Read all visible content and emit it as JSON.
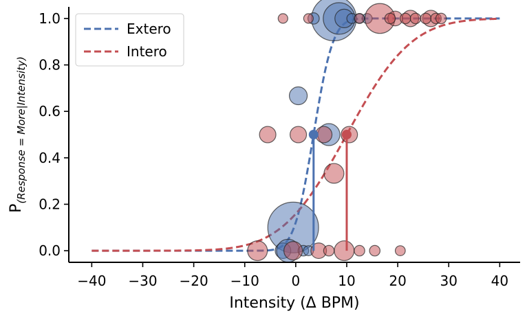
{
  "chart_data": {
    "type": "scatter",
    "xlabel": "Intensity (Δ BPM)",
    "ylabel_main": "P",
    "ylabel_sub": "(Response = More|Intensity)",
    "xlim": [
      -44.5,
      44
    ],
    "ylim": [
      -0.05,
      1.05
    ],
    "xticks": [
      -40,
      -30,
      -20,
      -10,
      0,
      10,
      20,
      30,
      40
    ],
    "yticks": [
      0.0,
      0.2,
      0.4,
      0.6,
      0.8,
      1.0
    ],
    "xtick_labels": [
      "−40",
      "−30",
      "−20",
      "−10",
      "0",
      "10",
      "20",
      "30",
      "40"
    ],
    "ytick_labels": [
      "0.0",
      "0.2",
      "0.4",
      "0.6",
      "0.8",
      "1.0"
    ],
    "legend_position": "upper-left",
    "series": [
      {
        "name": "Extero",
        "color": "#4c72b0",
        "curve": {
          "threshold": 3.5,
          "slope": 3.0,
          "x_range": [
            -40,
            40
          ]
        },
        "threshold_marker": {
          "x": 3.5,
          "y": 0.5
        },
        "points": [
          {
            "x": 7.5,
            "y": 1.0,
            "n": 9
          },
          {
            "x": 8.5,
            "y": 1.0,
            "n": 4
          },
          {
            "x": 9.5,
            "y": 1.0,
            "n": 1
          },
          {
            "x": 3.5,
            "y": 1.0,
            "n": 0.2
          },
          {
            "x": 11,
            "y": 1.0,
            "n": 0.12
          },
          {
            "x": 12.5,
            "y": 1.0,
            "n": 0.12
          },
          {
            "x": 14,
            "y": 1.0,
            "n": 0.12
          },
          {
            "x": 0.5,
            "y": 0.667,
            "n": 0.9
          },
          {
            "x": 6.5,
            "y": 0.5,
            "n": 1.6
          },
          {
            "x": -0.5,
            "y": 0.1,
            "n": 12
          },
          {
            "x": -2.5,
            "y": 0.0,
            "n": 0.6
          },
          {
            "x": -1.5,
            "y": 0.0,
            "n": 1.8
          },
          {
            "x": 1.5,
            "y": 0.0,
            "n": 0.15
          },
          {
            "x": 2.5,
            "y": 0.0,
            "n": 0.12
          }
        ]
      },
      {
        "name": "Intero",
        "color": "#c44e52",
        "curve": {
          "threshold": 10.0,
          "slope": 10.0,
          "x_range": [
            -40,
            40
          ]
        },
        "threshold_marker": {
          "x": 10.0,
          "y": 0.5
        },
        "points": [
          {
            "x": 16.5,
            "y": 1.0,
            "n": 3.5
          },
          {
            "x": 19.5,
            "y": 1.0,
            "n": 0.5
          },
          {
            "x": 22.5,
            "y": 1.0,
            "n": 0.7
          },
          {
            "x": 26.5,
            "y": 1.0,
            "n": 0.7
          },
          {
            "x": -2.5,
            "y": 1.0,
            "n": 0.1
          },
          {
            "x": 2.5,
            "y": 1.0,
            "n": 0.1
          },
          {
            "x": 12.5,
            "y": 1.0,
            "n": 0.1
          },
          {
            "x": 18.5,
            "y": 1.0,
            "n": 0.15
          },
          {
            "x": 21.5,
            "y": 1.0,
            "n": 0.15
          },
          {
            "x": 23.5,
            "y": 1.0,
            "n": 0.15
          },
          {
            "x": 25.5,
            "y": 1.0,
            "n": 0.15
          },
          {
            "x": 27.5,
            "y": 1.0,
            "n": 0.15
          },
          {
            "x": 28.5,
            "y": 1.0,
            "n": 0.15
          },
          {
            "x": -5.5,
            "y": 0.5,
            "n": 0.7
          },
          {
            "x": 0.5,
            "y": 0.5,
            "n": 0.7
          },
          {
            "x": 5.5,
            "y": 0.5,
            "n": 0.7
          },
          {
            "x": 7.5,
            "y": 0.333,
            "n": 1.2
          },
          {
            "x": 10.5,
            "y": 0.5,
            "n": 0.7
          },
          {
            "x": -7.5,
            "y": 0.0,
            "n": 1.2
          },
          {
            "x": -0.5,
            "y": 0.0,
            "n": 1.0
          },
          {
            "x": 4.5,
            "y": 0.0,
            "n": 0.6
          },
          {
            "x": 6.5,
            "y": 0.0,
            "n": 0.15
          },
          {
            "x": 9.5,
            "y": 0.0,
            "n": 1.2
          },
          {
            "x": 12.5,
            "y": 0.0,
            "n": 0.15
          },
          {
            "x": 15.5,
            "y": 0.0,
            "n": 0.15
          },
          {
            "x": 20.5,
            "y": 0.0,
            "n": 0.12
          }
        ]
      }
    ]
  }
}
